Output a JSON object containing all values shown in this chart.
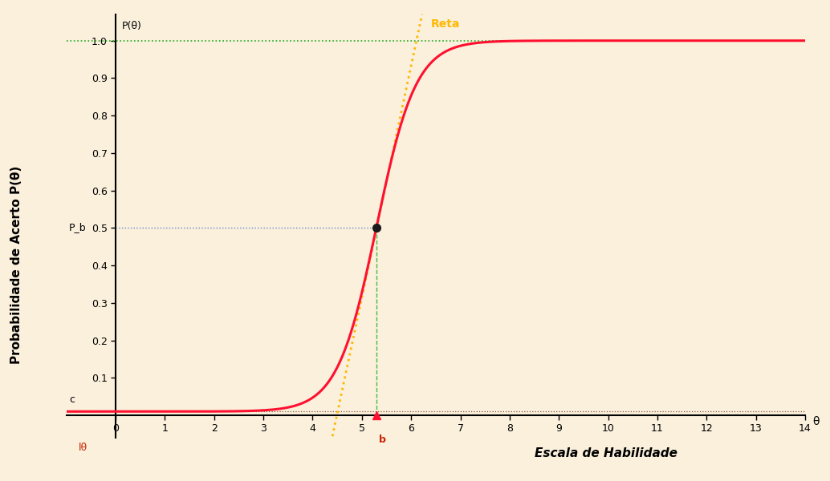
{
  "background_color": "#FAF0DC",
  "sigmoid_color": "#FF1030",
  "tangent_color": "#FFB800",
  "horizontal_1_color": "#22AA22",
  "horizontal_05_color": "#6688CC",
  "vertical_b_color": "#44BB44",
  "c_value": 0.01,
  "b_value": 5.3,
  "a_value": 2.5,
  "xmin": -1.0,
  "xmax": 14.0,
  "ymin": -0.06,
  "ymax": 1.07,
  "xlabel": "Escala de Habilidade",
  "ylabel": "Probabilidade de Acerto P(θ)",
  "tangent_label": "Reta",
  "pb_label": "P_b",
  "c_label": "c",
  "b_label": "b",
  "ltheta_label": "lθ",
  "theta_label": "θ",
  "p_theta_label": "P(θ)",
  "title_color": "#000000",
  "label_color_red": "#CC2200",
  "figsize": [
    10.34,
    6.0
  ],
  "dpi": 100
}
